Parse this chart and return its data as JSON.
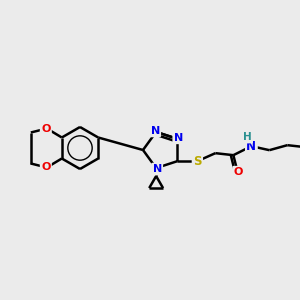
{
  "background_color": "#ebebeb",
  "atom_colors": {
    "C": "#000000",
    "N": "#0000ee",
    "O": "#ee0000",
    "S": "#bbaa00",
    "H": "#2a9090"
  },
  "bond_color": "#000000",
  "bond_width": 1.8,
  "figsize": [
    3.0,
    3.0
  ],
  "dpi": 100,
  "scale": 1.0
}
